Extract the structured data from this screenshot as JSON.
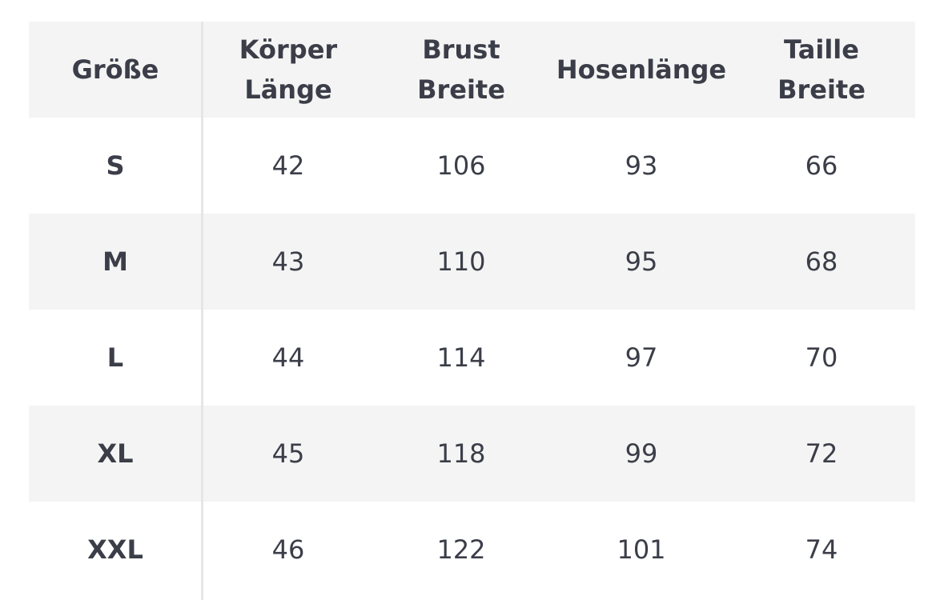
{
  "table": {
    "header": [
      [
        "Größe"
      ],
      [
        "Körper",
        "Länge"
      ],
      [
        "Brust",
        "Breite"
      ],
      [
        "Hosenlänge"
      ],
      [
        "Taille",
        "Breite"
      ]
    ],
    "rows": [
      [
        "S",
        42,
        106,
        93,
        66
      ],
      [
        "M",
        43,
        110,
        95,
        68
      ],
      [
        "L",
        44,
        114,
        97,
        70
      ],
      [
        "XL",
        45,
        118,
        99,
        72
      ],
      [
        "XXL",
        46,
        122,
        101,
        74
      ]
    ]
  }
}
